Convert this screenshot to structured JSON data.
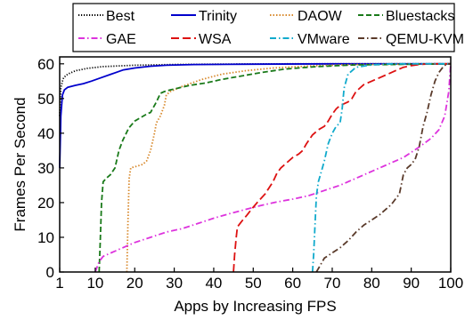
{
  "chart_data": {
    "type": "line",
    "xlabel": "Apps by Increasing FPS",
    "ylabel": "Frames Per Second",
    "xlim": [
      1,
      100
    ],
    "ylim": [
      0,
      62
    ],
    "xticks": [
      1,
      10,
      20,
      30,
      40,
      50,
      60,
      70,
      80,
      90,
      100
    ],
    "yticks": [
      0,
      10,
      20,
      30,
      40,
      50,
      60
    ],
    "grid": false,
    "legend_position": "top",
    "series": [
      {
        "name": "Best",
        "color": "#000000",
        "dash": "dotted",
        "x": [
          1,
          1.3,
          1.7,
          2,
          3,
          5,
          8,
          12,
          20,
          30,
          40,
          60,
          80,
          100
        ],
        "y": [
          45,
          53,
          55,
          56,
          57,
          58,
          58.7,
          59.2,
          59.6,
          59.8,
          59.9,
          60,
          60,
          60
        ]
      },
      {
        "name": "Trinity",
        "color": "#0000cc",
        "dash": "solid",
        "x": [
          1,
          1.3,
          1.7,
          2.2,
          3,
          5,
          7,
          9,
          11,
          14,
          17,
          20,
          24,
          28,
          35,
          50,
          70,
          100
        ],
        "y": [
          30,
          45,
          51,
          52.5,
          53.2,
          53.8,
          54.3,
          55,
          55.8,
          57,
          58.2,
          58.8,
          59.3,
          59.6,
          59.8,
          59.9,
          60,
          60
        ]
      },
      {
        "name": "DAOW",
        "color": "#d88a2e",
        "dash": "dotted-dense",
        "x": [
          18,
          18.3,
          18.6,
          19,
          20.5,
          22,
          23,
          24,
          25,
          25.5,
          26.5,
          27.5,
          28,
          29,
          32,
          37,
          42,
          48,
          55,
          65,
          75,
          100
        ],
        "y": [
          0,
          15,
          27,
          30,
          30.5,
          31,
          32,
          35,
          40,
          43,
          45,
          48,
          51,
          52,
          53.5,
          55.5,
          57,
          58,
          58.8,
          59.4,
          59.8,
          60
        ]
      },
      {
        "name": "Bluestacks",
        "color": "#1a7a1a",
        "dash": "dashed",
        "x": [
          11,
          11.3,
          11.6,
          12,
          12.8,
          13.8,
          15,
          16,
          17,
          18.5,
          20,
          21.5,
          23,
          24,
          25.5,
          26.5,
          27.5,
          29,
          31,
          34,
          38,
          42,
          47,
          52,
          58,
          66,
          76,
          100
        ],
        "y": [
          0,
          10,
          20,
          26,
          27,
          28,
          30,
          35,
          38,
          41.5,
          43.5,
          44.5,
          45.5,
          46,
          49,
          51.5,
          52,
          52.5,
          53,
          53.8,
          54.5,
          55.5,
          56.5,
          57.5,
          58.5,
          59.2,
          59.7,
          60
        ]
      },
      {
        "name": "GAE",
        "color": "#dd33dd",
        "dash": "dashdot",
        "x": [
          10,
          11,
          12,
          14,
          16,
          18,
          20,
          24,
          28,
          32,
          36,
          40,
          44,
          48,
          52,
          56,
          60,
          64,
          68,
          72,
          76,
          80,
          84,
          88,
          92,
          95,
          97,
          98.5,
          99.5,
          100
        ],
        "y": [
          0,
          3,
          4.5,
          5.5,
          6.5,
          7.5,
          8.5,
          10,
          11.5,
          12.5,
          14,
          15.5,
          16.8,
          18,
          19.2,
          20.2,
          21,
          22,
          23.5,
          25,
          27,
          29,
          31,
          33,
          36,
          38.5,
          41,
          45,
          52,
          60
        ]
      },
      {
        "name": "WSA",
        "color": "#dd1111",
        "dash": "longdash",
        "x": [
          45,
          45.3,
          45.7,
          46,
          47,
          48.5,
          49.5,
          51,
          53,
          55,
          56,
          57,
          58.5,
          60,
          61.5,
          62.5,
          63.5,
          65,
          66.5,
          68,
          69,
          70,
          71,
          72,
          73,
          74,
          75,
          76,
          78,
          80,
          82,
          84,
          86,
          88,
          90,
          92,
          95,
          98,
          100
        ],
        "y": [
          0,
          5,
          10,
          13,
          14.5,
          16.5,
          18,
          20,
          22.5,
          26,
          28.5,
          30,
          31.5,
          33,
          34,
          35,
          37,
          39.5,
          41,
          42,
          43.5,
          45.5,
          47,
          48,
          48.5,
          49,
          50,
          52,
          54,
          55,
          56,
          57,
          58,
          59,
          59.5,
          59.8,
          60,
          60,
          60
        ]
      },
      {
        "name": "VMware",
        "color": "#11aacc",
        "dash": "dashdot",
        "x": [
          65,
          65.3,
          65.7,
          66,
          66.5,
          67,
          68,
          69,
          70,
          71,
          72,
          72.5,
          73,
          74,
          76,
          80,
          85,
          90,
          100
        ],
        "y": [
          0,
          5,
          15,
          22,
          26,
          28,
          32,
          37,
          40,
          42,
          43,
          47,
          53,
          57,
          59,
          59.7,
          60,
          60,
          60
        ]
      },
      {
        "name": "QEMU-KVM",
        "color": "#5a3a2a",
        "dash": "dashdot",
        "x": [
          66,
          67,
          68,
          70,
          72,
          74,
          76,
          78,
          80,
          82,
          83,
          84,
          85,
          86,
          87,
          88,
          89,
          90,
          91,
          92,
          93,
          94,
          95,
          96,
          97,
          98,
          99,
          100
        ],
        "y": [
          0,
          2,
          4,
          5.5,
          7,
          9,
          11.5,
          13.5,
          15,
          16.5,
          17.5,
          18.5,
          19.5,
          21,
          22.5,
          28,
          30,
          31,
          32.5,
          36,
          42,
          46,
          51,
          55,
          57.5,
          59,
          60,
          60
        ]
      }
    ]
  }
}
